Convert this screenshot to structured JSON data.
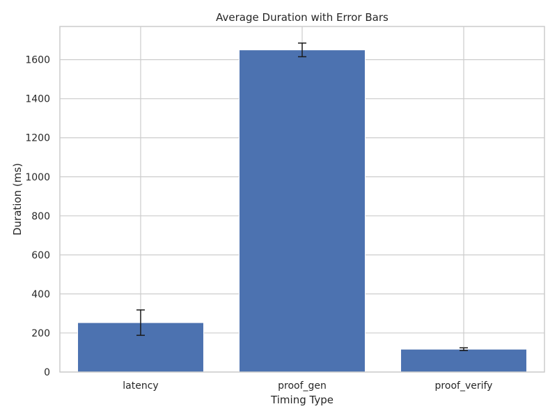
{
  "chart_data": {
    "type": "bar",
    "title": "Average Duration with Error Bars",
    "xlabel": "Timing Type",
    "ylabel": "Duration (ms)",
    "categories": [
      "latency",
      "proof_gen",
      "proof_verify"
    ],
    "values": [
      253,
      1650,
      117
    ],
    "errors": [
      65,
      35,
      7
    ],
    "ylim": [
      0,
      1770
    ],
    "yticks": [
      0,
      200,
      400,
      600,
      800,
      1000,
      1200,
      1400,
      1600
    ],
    "grid": true,
    "colors": {
      "bar": "#4c72b0",
      "error": "#1a1a1a",
      "grid": "#cccccc"
    }
  }
}
